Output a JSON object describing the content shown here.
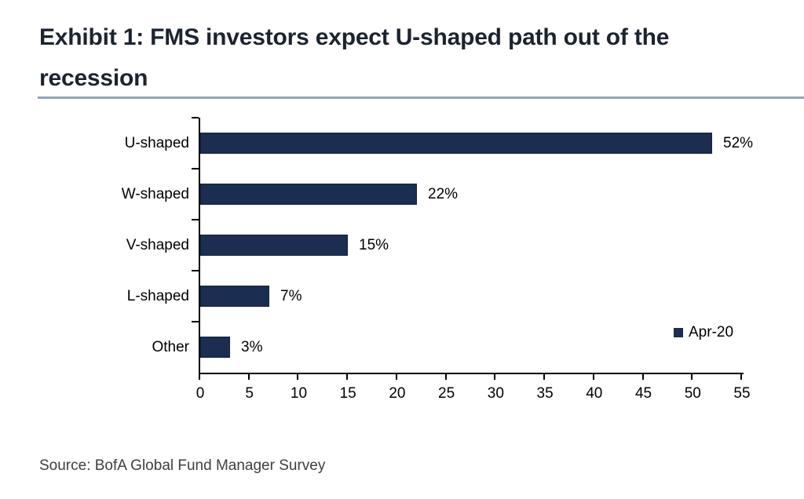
{
  "chart_data": {
    "type": "bar",
    "orientation": "horizontal",
    "title": "Exhibit 1: FMS investors expect U-shaped path out of the recession",
    "categories": [
      "U-shaped",
      "W-shaped",
      "V-shaped",
      "L-shaped",
      "Other"
    ],
    "series": [
      {
        "name": "Apr-20",
        "values": [
          52,
          22,
          15,
          7,
          3
        ]
      }
    ],
    "value_labels": [
      "52%",
      "22%",
      "15%",
      "7%",
      "3%"
    ],
    "xlim": [
      0,
      55
    ],
    "x_ticks": [
      0,
      5,
      10,
      15,
      20,
      25,
      30,
      35,
      40,
      45,
      50,
      55
    ],
    "grid": false,
    "legend": {
      "label": "Apr-20",
      "marker": "square",
      "position": "right-center"
    },
    "colors": {
      "bar": "#1B2D50",
      "bar_border": "#142340",
      "axis": "#000000"
    }
  },
  "footer": {
    "source": "Source: BofA Global Fund Manager Survey"
  },
  "styles": {
    "title_color": "#1C2430",
    "title_rule_color": "#92A5BB",
    "source_color": "#3F3F3F",
    "background": "#FFFFFF"
  }
}
